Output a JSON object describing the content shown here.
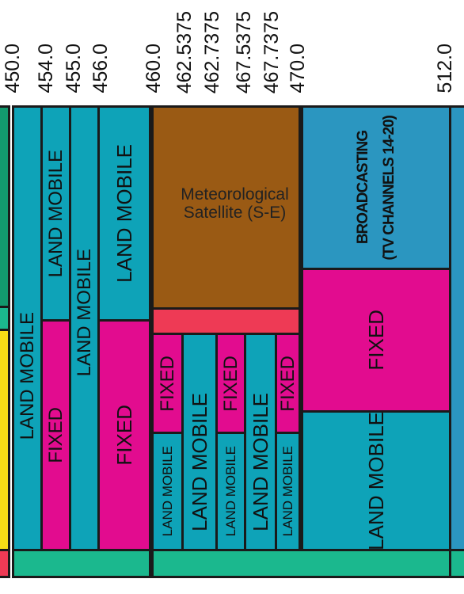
{
  "frequencies": [
    "450.0",
    "454.0",
    "455.0",
    "456.0",
    "460.0",
    "462.5375",
    "462.7375",
    "467.5375",
    "467.7375",
    "470.0",
    "512.0"
  ],
  "services": {
    "land_mobile": "LAND MOBILE",
    "fixed": "FIXED",
    "meteorological": "Meteorological",
    "satellite": "Satellite (S-E)",
    "broadcasting": "BROADCASTING",
    "tv_channels": "(TV CHANNELS 14-20)"
  },
  "colors": {
    "land_mobile": "#0ea3b8",
    "fixed": "#e20c8f",
    "meteorological": "#9a5a14",
    "broadcasting": "#2b96c0",
    "mobile_satellite_bar": "#ee3a55",
    "bottom_band": "#1bb88e"
  }
}
